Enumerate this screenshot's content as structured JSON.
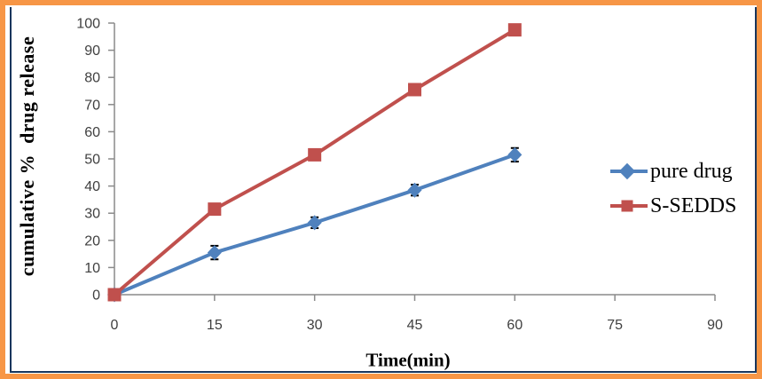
{
  "colors": {
    "frame_orange": "#F79646",
    "accent_navy": "#17365D",
    "axis_gray": "#8A8A8A",
    "tick_text": "#3F3F3F",
    "error_bar": "#000000"
  },
  "chart_data": {
    "type": "line",
    "title": "",
    "xlabel": "Time(min)",
    "ylabel": "cumulative %  drug release",
    "x": [
      0,
      15,
      30,
      45,
      60
    ],
    "series": [
      {
        "name": "pure drug",
        "color": "#4F81BD",
        "marker": "diamond",
        "values": [
          0,
          15.5,
          26.5,
          38.5,
          51.5
        ],
        "error": [
          2,
          2.5,
          2,
          2,
          2.5
        ]
      },
      {
        "name": "S-SEDDS",
        "color": "#C0504D",
        "marker": "square",
        "values": [
          0,
          31.5,
          51.5,
          75.5,
          97.5
        ],
        "error": [
          2,
          2,
          1.5,
          1.5,
          1.5
        ]
      }
    ],
    "xlim": [
      0,
      90
    ],
    "ylim": [
      0,
      100
    ],
    "x_ticks": [
      0,
      15,
      30,
      45,
      60,
      75,
      90
    ],
    "y_ticks": [
      0,
      10,
      20,
      30,
      40,
      50,
      60,
      70,
      80,
      90,
      100
    ],
    "grid": false,
    "error_bars": true,
    "legend_position": "right"
  }
}
